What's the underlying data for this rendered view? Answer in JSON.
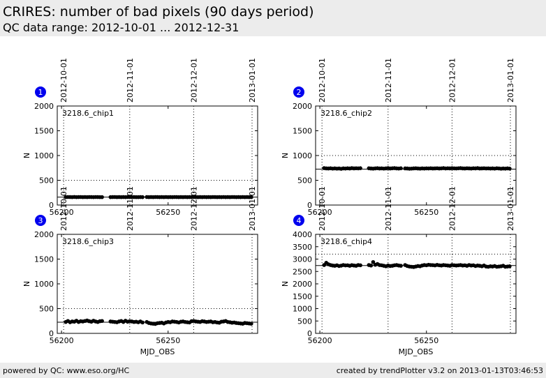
{
  "header": {
    "title": "CRIRES: number of bad pixels (90 days period)",
    "subtitle": "QC data range: 2012-10-01 ... 2012-12-31"
  },
  "footer": {
    "left": "powered by QC: www.eso.org/HC",
    "right": "created by trendPlotter v3.2 on 2013-01-13T03:46:53"
  },
  "chart_data": [
    {
      "type": "scatter",
      "number": "1",
      "label": "3218.6_chip1",
      "ylabel": "N",
      "xlabel": "",
      "xlim": [
        56198,
        56292
      ],
      "ylim": [
        0,
        2000
      ],
      "yticks": [
        0,
        500,
        1000,
        1500,
        2000
      ],
      "xticks": [
        56200,
        56250
      ],
      "date_ticks": [
        {
          "x": 56201,
          "label": "2012-10-01"
        },
        {
          "x": 56232,
          "label": "2012-11-01"
        },
        {
          "x": 56262,
          "label": "2012-12-01"
        },
        {
          "x": 56293,
          "label": "2013-01-01"
        }
      ],
      "ref_lines": [
        500,
        160
      ],
      "series": [
        {
          "x": [
            56202,
            56203,
            56204,
            56205,
            56206,
            56207,
            56208,
            56209,
            56210,
            56211,
            56212,
            56213,
            56214,
            56215,
            56216,
            56217,
            56218,
            56219,
            56223,
            56224,
            56225,
            56226,
            56227,
            56228,
            56229,
            56230,
            56231,
            56232,
            56233,
            56234,
            56235,
            56236,
            56237,
            56238,
            56240,
            56241,
            56242,
            56243,
            56244,
            56245,
            56246,
            56247,
            56248,
            56249,
            56250,
            56251,
            56252,
            56253,
            56254,
            56255,
            56256,
            56257,
            56258,
            56259,
            56260,
            56261,
            56262,
            56263,
            56264,
            56265,
            56266,
            56267,
            56268,
            56269,
            56270,
            56271,
            56272,
            56273,
            56274,
            56275,
            56276,
            56277,
            56278,
            56279,
            56280,
            56281,
            56282,
            56283,
            56284,
            56285,
            56286,
            56287,
            56288,
            56289
          ],
          "y": [
            160,
            162,
            161,
            160,
            163,
            160,
            161,
            162,
            160,
            161,
            160,
            162,
            161,
            160,
            162,
            161,
            160,
            160,
            160,
            161,
            162,
            160,
            161,
            160,
            161,
            160,
            162,
            161,
            160,
            161,
            160,
            160,
            161,
            160,
            162,
            160,
            161,
            160,
            162,
            161,
            160,
            161,
            160,
            162,
            160,
            161,
            160,
            162,
            161,
            160,
            161,
            160,
            162,
            160,
            161,
            160,
            162,
            161,
            160,
            161,
            160,
            162,
            160,
            161,
            160,
            162,
            161,
            160,
            161,
            160,
            162,
            160,
            161,
            160,
            162,
            161,
            160,
            161,
            160,
            162,
            160,
            161,
            160,
            160
          ]
        }
      ]
    },
    {
      "type": "scatter",
      "number": "2",
      "label": "3218.6_chip2",
      "ylabel": "N",
      "xlabel": "",
      "xlim": [
        56198,
        56292
      ],
      "ylim": [
        0,
        2000
      ],
      "yticks": [
        0,
        500,
        1000,
        1500,
        2000
      ],
      "xticks": [
        56200,
        56250
      ],
      "date_ticks": [
        {
          "x": 56201,
          "label": "2012-10-01"
        },
        {
          "x": 56232,
          "label": "2012-11-01"
        },
        {
          "x": 56262,
          "label": "2012-12-01"
        },
        {
          "x": 56293,
          "label": "2013-01-01"
        }
      ],
      "ref_lines": [
        1000,
        725
      ],
      "series": [
        {
          "x": [
            56202,
            56203,
            56204,
            56205,
            56206,
            56207,
            56208,
            56209,
            56210,
            56211,
            56212,
            56213,
            56214,
            56215,
            56216,
            56217,
            56218,
            56219,
            56223,
            56224,
            56225,
            56226,
            56227,
            56228,
            56229,
            56230,
            56231,
            56232,
            56233,
            56234,
            56235,
            56236,
            56237,
            56238,
            56240,
            56241,
            56242,
            56243,
            56244,
            56245,
            56246,
            56247,
            56248,
            56249,
            56250,
            56251,
            56252,
            56253,
            56254,
            56255,
            56256,
            56257,
            56258,
            56259,
            56260,
            56261,
            56262,
            56263,
            56264,
            56265,
            56266,
            56267,
            56268,
            56269,
            56270,
            56271,
            56272,
            56273,
            56274,
            56275,
            56276,
            56277,
            56278,
            56279,
            56280,
            56281,
            56282,
            56283,
            56284,
            56285,
            56286,
            56287,
            56288,
            56289
          ],
          "y": [
            745,
            740,
            738,
            742,
            736,
            740,
            735,
            738,
            732,
            740,
            737,
            742,
            738,
            745,
            740,
            743,
            741,
            744,
            742,
            738,
            735,
            740,
            744,
            738,
            741,
            736,
            740,
            745,
            738,
            742,
            745,
            740,
            737,
            742,
            740,
            738,
            733,
            736,
            740,
            742,
            738,
            735,
            740,
            737,
            741,
            739,
            742,
            738,
            740,
            743,
            738,
            741,
            745,
            739,
            742,
            740,
            744,
            741,
            739,
            742,
            745,
            740,
            738,
            742,
            740,
            737,
            742,
            740,
            745,
            738,
            740,
            742,
            739,
            741,
            737,
            740,
            736,
            742,
            739,
            734,
            738,
            735,
            740,
            736
          ]
        }
      ]
    },
    {
      "type": "scatter",
      "number": "3",
      "label": "3218.6_chip3",
      "ylabel": "N",
      "xlabel": "MJD_OBS",
      "xlim": [
        56198,
        56292
      ],
      "ylim": [
        0,
        2000
      ],
      "yticks": [
        0,
        500,
        1000,
        1500,
        2000
      ],
      "xticks": [
        56200,
        56250
      ],
      "date_ticks": [
        {
          "x": 56201,
          "label": "2012-10-01"
        },
        {
          "x": 56232,
          "label": "2012-11-01"
        },
        {
          "x": 56262,
          "label": "2012-12-01"
        },
        {
          "x": 56293,
          "label": "2013-01-01"
        }
      ],
      "ref_lines": [
        500,
        225
      ],
      "series": [
        {
          "x": [
            56202,
            56203,
            56204,
            56205,
            56206,
            56207,
            56208,
            56209,
            56210,
            56211,
            56212,
            56213,
            56214,
            56215,
            56216,
            56217,
            56218,
            56219,
            56223,
            56224,
            56225,
            56226,
            56227,
            56228,
            56229,
            56230,
            56231,
            56232,
            56233,
            56234,
            56235,
            56236,
            56237,
            56238,
            56240,
            56241,
            56242,
            56243,
            56244,
            56245,
            56246,
            56247,
            56248,
            56249,
            56250,
            56251,
            56252,
            56253,
            56254,
            56255,
            56256,
            56257,
            56258,
            56259,
            56260,
            56261,
            56262,
            56263,
            56264,
            56265,
            56266,
            56267,
            56268,
            56269,
            56270,
            56271,
            56272,
            56273,
            56274,
            56275,
            56276,
            56277,
            56278,
            56279,
            56280,
            56281,
            56282,
            56283,
            56284,
            56285,
            56286,
            56287,
            56288,
            56289
          ],
          "y": [
            230,
            250,
            225,
            240,
            235,
            255,
            230,
            245,
            240,
            250,
            260,
            245,
            235,
            255,
            240,
            230,
            245,
            250,
            240,
            235,
            230,
            225,
            240,
            250,
            230,
            255,
            235,
            245,
            240,
            230,
            235,
            225,
            240,
            220,
            230,
            210,
            200,
            195,
            190,
            205,
            210,
            215,
            200,
            220,
            230,
            225,
            240,
            235,
            230,
            220,
            235,
            240,
            230,
            225,
            220,
            245,
            250,
            240,
            235,
            230,
            245,
            240,
            230,
            235,
            240,
            225,
            230,
            220,
            215,
            235,
            240,
            250,
            230,
            225,
            215,
            220,
            210,
            205,
            200,
            195,
            210,
            205,
            200,
            195
          ]
        }
      ]
    },
    {
      "type": "scatter",
      "number": "4",
      "label": "3218.6_chip4",
      "ylabel": "N",
      "xlabel": "MJD_OBS",
      "xlim": [
        56198,
        56292
      ],
      "ylim": [
        0,
        4000
      ],
      "yticks": [
        0,
        500,
        1000,
        1500,
        2000,
        2500,
        3000,
        3500,
        4000
      ],
      "xticks": [
        56200,
        56250
      ],
      "date_ticks": [
        {
          "x": 56201,
          "label": "2012-10-01"
        },
        {
          "x": 56232,
          "label": "2012-11-01"
        },
        {
          "x": 56262,
          "label": "2012-12-01"
        },
        {
          "x": 56293,
          "label": "2013-01-01"
        }
      ],
      "ref_lines": [
        3200,
        2740
      ],
      "series": [
        {
          "x": [
            56202,
            56203,
            56204,
            56205,
            56206,
            56207,
            56208,
            56209,
            56210,
            56211,
            56212,
            56213,
            56214,
            56215,
            56216,
            56217,
            56218,
            56219,
            56223,
            56224,
            56225,
            56226,
            56227,
            56228,
            56229,
            56230,
            56231,
            56232,
            56233,
            56234,
            56235,
            56236,
            56237,
            56238,
            56240,
            56241,
            56242,
            56243,
            56244,
            56245,
            56246,
            56247,
            56248,
            56249,
            56250,
            56251,
            56252,
            56253,
            56254,
            56255,
            56256,
            56257,
            56258,
            56259,
            56260,
            56261,
            56262,
            56263,
            56264,
            56265,
            56266,
            56267,
            56268,
            56269,
            56270,
            56271,
            56272,
            56273,
            56274,
            56275,
            56276,
            56277,
            56278,
            56279,
            56280,
            56281,
            56282,
            56283,
            56284,
            56285,
            56286,
            56287,
            56288,
            56289
          ],
          "y": [
            2760,
            2850,
            2790,
            2760,
            2740,
            2730,
            2750,
            2720,
            2735,
            2760,
            2745,
            2750,
            2730,
            2755,
            2740,
            2730,
            2760,
            2750,
            2760,
            2740,
            2880,
            2770,
            2800,
            2760,
            2750,
            2730,
            2710,
            2740,
            2720,
            2730,
            2750,
            2760,
            2740,
            2730,
            2760,
            2720,
            2700,
            2690,
            2680,
            2700,
            2720,
            2710,
            2740,
            2760,
            2750,
            2770,
            2760,
            2755,
            2745,
            2765,
            2750,
            2740,
            2760,
            2750,
            2740,
            2730,
            2760,
            2750,
            2740,
            2750,
            2760,
            2740,
            2750,
            2730,
            2760,
            2740,
            2750,
            2720,
            2740,
            2730,
            2710,
            2740,
            2700,
            2690,
            2710,
            2700,
            2720,
            2690,
            2700,
            2710,
            2730,
            2690,
            2700,
            2710
          ]
        }
      ]
    }
  ]
}
